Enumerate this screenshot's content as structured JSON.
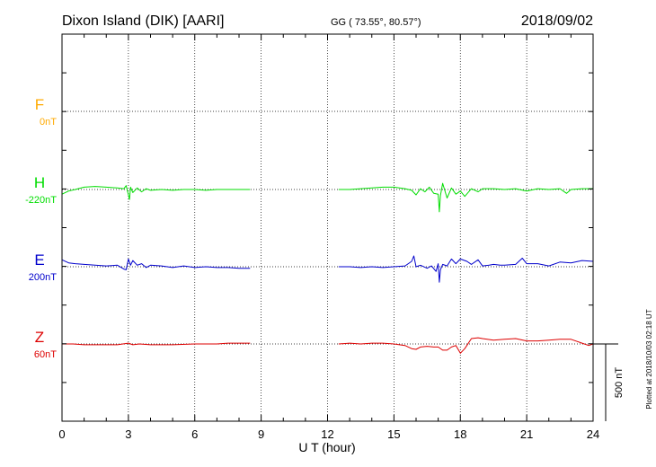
{
  "header": {
    "station": "Dixon Island (DIK)  [AARI]",
    "coords": "GG ( 73.55°,  80.57°)",
    "date": "2018/09/02"
  },
  "footer": {
    "plotted": "Plotted at 2018/10/03 02:18 UT"
  },
  "chart_data": {
    "type": "line",
    "xlabel": "U T (hour)",
    "xlim": [
      0,
      24
    ],
    "xticks": [
      0,
      3,
      6,
      9,
      12,
      15,
      18,
      21,
      24
    ],
    "xtick_labels": [
      "0",
      "3",
      "6",
      "9",
      "12",
      "15",
      "18",
      "21",
      "24"
    ],
    "scale_bar": {
      "label": "500 nT",
      "value_nT": 500
    },
    "grid": true,
    "colors": {
      "F": "#ffaa00",
      "H": "#00dd00",
      "E": "#0000cc",
      "Z": "#dd0000"
    },
    "series": [
      {
        "name": "F",
        "baseline_label": "0nT",
        "x": [],
        "y": []
      },
      {
        "name": "H",
        "baseline_label": "-220nT",
        "segments": [
          {
            "x": [
              0,
              0.3,
              0.6,
              1.0,
              1.5,
              2.0,
              2.5,
              2.8,
              2.9,
              3.0,
              3.05,
              3.1,
              3.2,
              3.4,
              3.6,
              3.8,
              4.0,
              4.5,
              5.0,
              5.5,
              6.0,
              6.5,
              7.0,
              7.5,
              8.0,
              8.5
            ],
            "y": [
              -30,
              -10,
              0,
              15,
              20,
              15,
              10,
              5,
              25,
              -35,
              -65,
              15,
              -20,
              10,
              -15,
              5,
              -5,
              0,
              -5,
              0,
              0,
              -5,
              0,
              0,
              0,
              0
            ]
          },
          {
            "x": [
              12.5,
              13.0,
              13.5,
              14.0,
              14.5,
              15.0,
              15.5,
              15.8,
              16.0,
              16.2,
              16.4,
              16.6,
              16.8,
              17.0,
              17.05,
              17.1,
              17.2,
              17.4,
              17.6,
              17.8,
              18.0,
              18.2,
              18.5,
              18.8,
              19.0,
              19.5,
              20.0,
              20.5,
              21.0,
              21.5,
              22.0,
              22.5,
              22.8,
              23.0,
              23.5,
              24.0
            ],
            "y": [
              0,
              0,
              5,
              10,
              15,
              15,
              5,
              -5,
              -35,
              5,
              -15,
              15,
              -25,
              -30,
              -145,
              -40,
              40,
              -55,
              10,
              -30,
              -10,
              -45,
              5,
              -15,
              5,
              5,
              0,
              5,
              -10,
              5,
              0,
              5,
              -25,
              0,
              5,
              5
            ]
          }
        ]
      },
      {
        "name": "E",
        "baseline_label": "200nT",
        "segments": [
          {
            "x": [
              0,
              0.3,
              0.6,
              1.0,
              1.5,
              2.0,
              2.5,
              2.8,
              2.9,
              3.0,
              3.1,
              3.2,
              3.4,
              3.6,
              3.8,
              4.0,
              4.5,
              5.0,
              5.5,
              6.0,
              6.5,
              7.0,
              7.5,
              8.0,
              8.5
            ],
            "y": [
              45,
              25,
              20,
              15,
              10,
              5,
              10,
              -15,
              -20,
              50,
              10,
              40,
              10,
              20,
              -5,
              10,
              5,
              -5,
              5,
              -5,
              0,
              -5,
              -5,
              -10,
              -10
            ]
          },
          {
            "x": [
              12.5,
              13.0,
              13.5,
              14.0,
              14.5,
              15.0,
              15.5,
              15.8,
              15.9,
              16.0,
              16.2,
              16.5,
              16.7,
              16.9,
              17.0,
              17.05,
              17.1,
              17.2,
              17.4,
              17.6,
              17.8,
              18.0,
              18.3,
              18.5,
              18.8,
              19.0,
              19.3,
              19.5,
              19.8,
              20.0,
              20.5,
              20.8,
              21.0,
              21.5,
              22.0,
              22.5,
              23.0,
              23.5,
              24.0
            ],
            "y": [
              0,
              0,
              -5,
              0,
              -5,
              0,
              5,
              35,
              70,
              0,
              10,
              -10,
              5,
              -30,
              20,
              -100,
              -20,
              15,
              5,
              50,
              20,
              50,
              35,
              15,
              45,
              5,
              10,
              15,
              10,
              10,
              15,
              55,
              20,
              20,
              5,
              30,
              25,
              40,
              35
            ]
          }
        ]
      },
      {
        "name": "Z",
        "baseline_label": "60nT",
        "segments": [
          {
            "x": [
              0,
              0.5,
              1.0,
              1.5,
              2.0,
              2.5,
              3.0,
              3.2,
              3.5,
              4.0,
              5.0,
              6.0,
              7.0,
              7.5,
              8.0,
              8.5
            ],
            "y": [
              0,
              0,
              -5,
              -5,
              -5,
              -5,
              5,
              -5,
              0,
              -5,
              -5,
              0,
              0,
              5,
              5,
              5
            ]
          },
          {
            "x": [
              12.5,
              13.0,
              13.5,
              14.0,
              14.5,
              15.0,
              15.5,
              15.8,
              16.0,
              16.2,
              16.5,
              16.8,
              17.0,
              17.2,
              17.4,
              17.6,
              17.8,
              18.0,
              18.2,
              18.5,
              18.8,
              19.0,
              19.5,
              20.0,
              20.5,
              21.0,
              21.5,
              22.0,
              22.5,
              23.0,
              23.5,
              23.8,
              24.0
            ],
            "y": [
              0,
              5,
              0,
              5,
              5,
              0,
              -10,
              -30,
              -35,
              -20,
              -15,
              -20,
              -20,
              -40,
              -40,
              -20,
              -10,
              -60,
              -30,
              35,
              40,
              35,
              25,
              30,
              35,
              20,
              20,
              25,
              30,
              30,
              5,
              -10,
              0
            ]
          }
        ]
      }
    ]
  }
}
